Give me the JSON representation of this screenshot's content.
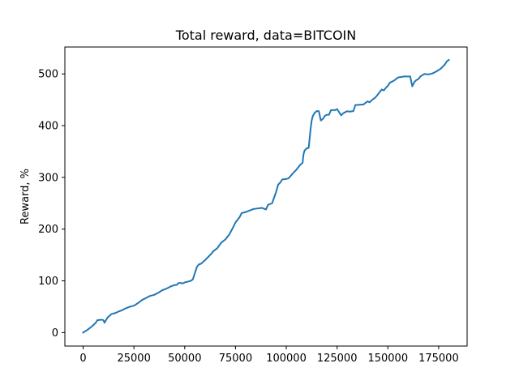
{
  "chart_data": {
    "type": "line",
    "title": "Total reward, data=BITCOIN",
    "xlabel": "",
    "ylabel": "Reward, %",
    "xlim": [
      -9000,
      189000
    ],
    "ylim": [
      -26,
      552
    ],
    "xticks": [
      0,
      25000,
      50000,
      75000,
      100000,
      125000,
      150000,
      175000
    ],
    "xtick_labels": [
      "0",
      "25000",
      "50000",
      "75000",
      "100000",
      "125000",
      "150000",
      "175000"
    ],
    "yticks": [
      0,
      100,
      200,
      300,
      400,
      500
    ],
    "ytick_labels": [
      "0",
      "100",
      "200",
      "300",
      "400",
      "500"
    ],
    "grid": false,
    "legend": "none",
    "series": [
      {
        "color": "#1f77b4",
        "x": [
          0,
          2000,
          4000,
          6000,
          7000,
          9000,
          10000,
          10500,
          12000,
          14000,
          16000,
          17000,
          19000,
          21000,
          23000,
          25000,
          27000,
          29000,
          31000,
          33000,
          35000,
          37000,
          39000,
          41000,
          43000,
          45000,
          46000,
          47000,
          48000,
          49000,
          50000,
          51000,
          52000,
          53000,
          54000,
          55000,
          56000,
          57000,
          58000,
          60000,
          62000,
          63000,
          64000,
          66000,
          68000,
          70000,
          72000,
          74000,
          75000,
          76000,
          77000,
          78000,
          80000,
          82000,
          84000,
          86000,
          88000,
          90000,
          91000,
          93000,
          95000,
          96000,
          97000,
          98000,
          100000,
          101000,
          102000,
          103000,
          105000,
          106000,
          107000,
          108000,
          108500,
          109000,
          110000,
          111000,
          112000,
          112500,
          113000,
          114000,
          115000,
          116000,
          117000,
          118000,
          119000,
          120000,
          121000,
          122000,
          123000,
          124000,
          125000,
          127000,
          128000,
          129000,
          130000,
          131000,
          133000,
          134000,
          135000,
          138000,
          140000,
          141000,
          142000,
          144000,
          145000,
          146000,
          147000,
          148000,
          149000,
          150000,
          151000,
          153000,
          155000,
          158000,
          161000,
          162000,
          163000,
          164000,
          165000,
          166000,
          168000,
          170000,
          172000,
          174000,
          176000,
          178000,
          179000,
          180000
        ],
        "y": [
          0,
          5,
          11,
          18,
          24,
          25,
          24,
          19,
          29,
          36,
          38,
          40,
          43,
          47,
          50,
          52,
          57,
          63,
          67,
          71,
          73,
          77,
          82,
          85,
          89,
          92,
          92,
          96,
          96,
          95,
          97,
          98,
          99,
          100,
          103,
          115,
          127,
          132,
          133,
          140,
          148,
          152,
          157,
          163,
          174,
          180,
          190,
          205,
          213,
          218,
          223,
          231,
          233,
          236,
          239,
          240,
          241,
          238,
          247,
          250,
          272,
          286,
          290,
          296,
          297,
          298,
          302,
          307,
          315,
          320,
          325,
          328,
          345,
          352,
          356,
          357,
          395,
          410,
          418,
          425,
          428,
          428,
          410,
          413,
          419,
          421,
          421,
          430,
          430,
          430,
          432,
          420,
          424,
          426,
          428,
          427,
          428,
          440,
          440,
          441,
          447,
          445,
          449,
          455,
          460,
          465,
          470,
          468,
          473,
          477,
          483,
          487,
          493,
          495,
          495,
          476,
          484,
          488,
          490,
          495,
          500,
          499,
          501,
          505,
          510,
          518,
          524,
          527
        ]
      }
    ]
  }
}
